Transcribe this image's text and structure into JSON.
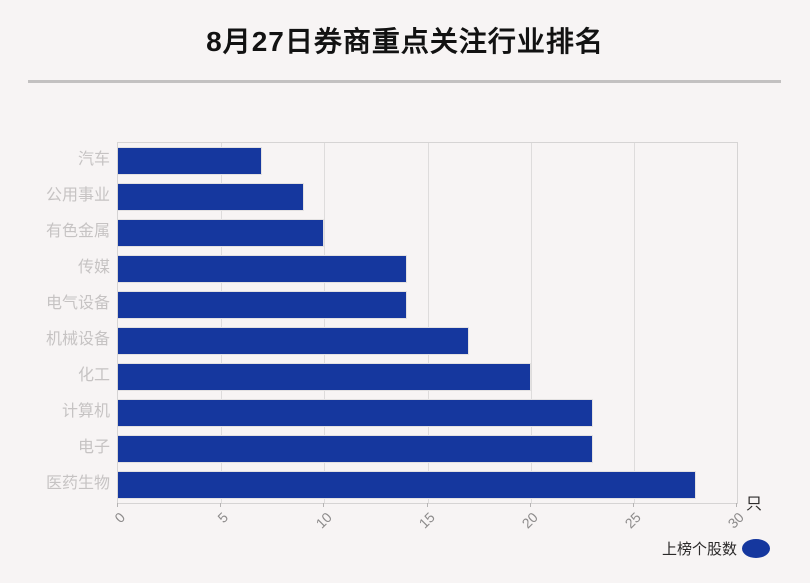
{
  "page": {
    "background_color": "#f7f4f4"
  },
  "header": {
    "title": "8月27日券商重点关注行业排名"
  },
  "chart_data": {
    "type": "bar",
    "orientation": "horizontal",
    "title": "8月27日券商重点关注行业排名",
    "categories": [
      "汽车",
      "公用事业",
      "有色金属",
      "传媒",
      "电气设备",
      "机械设备",
      "化工",
      "计算机",
      "电子",
      "医药生物"
    ],
    "values": [
      7,
      9,
      10,
      14,
      14,
      17,
      20,
      23,
      23,
      28
    ],
    "series_name": "上榜个股数",
    "xlabel": "",
    "ylabel": "",
    "x_unit": "只",
    "xlim": [
      0,
      30
    ],
    "x_ticks": [
      0,
      5,
      10,
      15,
      20,
      25,
      30
    ],
    "grid": true,
    "bar_color": "#15379e",
    "legend_position": "bottom-right"
  },
  "legend": {
    "label": "上榜个股数"
  },
  "axis": {
    "unit_label": "只"
  }
}
